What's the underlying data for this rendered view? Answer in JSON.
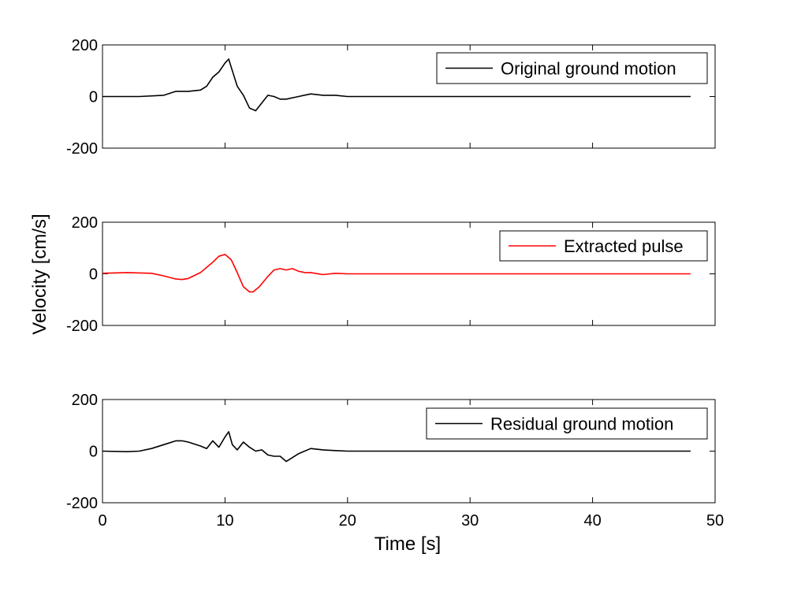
{
  "figure": {
    "xlabel": "Time [s]",
    "ylabel": "Velocity [cm/s]"
  },
  "chart_data": [
    {
      "type": "line",
      "xlim": [
        0,
        50
      ],
      "ylim": [
        -200,
        200
      ],
      "xticks": [
        0,
        10,
        20,
        30,
        40,
        50
      ],
      "xticks_labeled": false,
      "yticks": [
        -200,
        0,
        200
      ],
      "ytick_labels": [
        "-200",
        "0",
        "200"
      ],
      "grid": false,
      "legend_position": "top-right",
      "series": [
        {
          "name": "Original ground motion",
          "color": "#000000",
          "x": [
            0,
            3,
            5,
            6,
            7,
            8,
            8.5,
            9,
            9.5,
            10,
            10.3,
            10.6,
            11,
            11.5,
            12,
            12.5,
            13,
            13.5,
            14,
            14.5,
            15,
            16,
            17,
            18,
            19,
            20,
            22,
            25,
            30,
            40,
            48
          ],
          "y": [
            0,
            0,
            5,
            20,
            20,
            25,
            40,
            75,
            95,
            130,
            145,
            100,
            40,
            5,
            -45,
            -55,
            -25,
            5,
            0,
            -10,
            -10,
            0,
            10,
            5,
            5,
            0,
            0,
            0,
            0,
            0,
            0
          ]
        }
      ]
    },
    {
      "type": "line",
      "xlim": [
        0,
        50
      ],
      "ylim": [
        -200,
        200
      ],
      "xticks": [
        0,
        10,
        20,
        30,
        40,
        50
      ],
      "xticks_labeled": false,
      "yticks": [
        -200,
        0,
        200
      ],
      "ytick_labels": [
        "-200",
        "0",
        "200"
      ],
      "grid": false,
      "legend_position": "top-right",
      "series": [
        {
          "name": "Extracted pulse",
          "color": "#ff0000",
          "x": [
            0,
            2,
            4,
            5,
            6,
            6.5,
            7,
            8,
            9,
            9.5,
            10,
            10.5,
            11,
            11.5,
            12,
            12.3,
            12.8,
            13.5,
            14,
            14.5,
            15,
            15.5,
            16,
            16.5,
            17,
            18,
            19,
            20,
            25,
            30,
            48
          ],
          "y": [
            2,
            5,
            2,
            -8,
            -20,
            -22,
            -18,
            5,
            45,
            68,
            75,
            55,
            5,
            -50,
            -70,
            -70,
            -50,
            -10,
            15,
            20,
            15,
            20,
            10,
            5,
            5,
            -3,
            2,
            0,
            0,
            0,
            0
          ]
        }
      ]
    },
    {
      "type": "line",
      "xlim": [
        0,
        50
      ],
      "ylim": [
        -200,
        200
      ],
      "xticks": [
        0,
        10,
        20,
        30,
        40,
        50
      ],
      "xticks_labeled": true,
      "xtick_labels": [
        "0",
        "10",
        "20",
        "30",
        "40",
        "50"
      ],
      "yticks": [
        -200,
        0,
        200
      ],
      "ytick_labels": [
        "-200",
        "0",
        "200"
      ],
      "grid": false,
      "legend_position": "top-right",
      "series": [
        {
          "name": "Residual ground motion",
          "color": "#000000",
          "x": [
            0,
            2,
            3,
            4,
            5,
            6,
            6.5,
            7,
            8,
            8.5,
            9,
            9.5,
            10,
            10.3,
            10.6,
            11,
            11.5,
            12,
            12.5,
            13,
            13.5,
            14,
            14.5,
            15,
            15.5,
            16,
            17,
            18,
            19,
            20,
            22,
            25,
            30,
            40,
            48
          ],
          "y": [
            0,
            -2,
            0,
            10,
            25,
            40,
            40,
            35,
            20,
            10,
            40,
            15,
            55,
            75,
            25,
            5,
            35,
            15,
            0,
            5,
            -15,
            -20,
            -20,
            -40,
            -25,
            -10,
            10,
            5,
            2,
            0,
            0,
            0,
            0,
            0,
            0
          ]
        }
      ]
    }
  ]
}
